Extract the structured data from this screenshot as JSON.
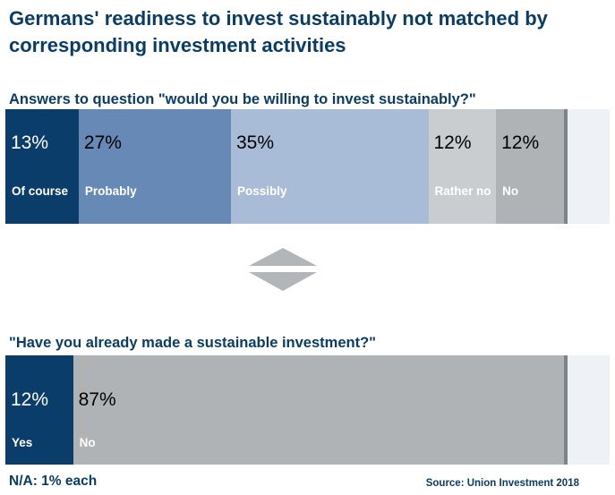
{
  "title": "Germans' readiness to invest sustainably not matched by corresponding investment activities",
  "footnote": "N/A: 1% each",
  "source": "Source: Union Investment 2018",
  "chart_data": [
    {
      "type": "bar",
      "orientation": "horizontal-stacked",
      "title": "Answers to question \"would you be willing to invest sustainably?\"",
      "categories": [
        "Of course",
        "Probably",
        "Possibly",
        "Rather no",
        "No"
      ],
      "values": [
        13,
        27,
        35,
        12,
        12
      ],
      "value_labels": [
        "13%",
        "27%",
        "35%",
        "12%",
        "12%"
      ],
      "n_a": 1,
      "colors": [
        "#0b3d6b",
        "#6689b6",
        "#a8bcd7",
        "#c9cdd0",
        "#b0b3b5"
      ],
      "text_colors": [
        "#ffffff",
        "#000000",
        "#000000",
        "#000000",
        "#000000"
      ],
      "label_colors": [
        "#ffffff",
        "#ffffff",
        "#ffffff",
        "#ffffff",
        "#ffffff"
      ]
    },
    {
      "type": "bar",
      "orientation": "horizontal-stacked",
      "title": "\"Have you already made a sustainable investment?\"",
      "categories": [
        "Yes",
        "No"
      ],
      "values": [
        12,
        87
      ],
      "value_labels": [
        "12%",
        "87%"
      ],
      "n_a": 1,
      "colors": [
        "#0b3d6b",
        "#b0b3b5"
      ],
      "text_colors": [
        "#ffffff",
        "#000000"
      ],
      "label_colors": [
        "#ffffff",
        "#ffffff"
      ]
    }
  ],
  "colors": {
    "title": "#0a3d66",
    "na_fill": "#eef2f6",
    "end_line": "#7f8487",
    "arrow": "#b3b6b8"
  }
}
